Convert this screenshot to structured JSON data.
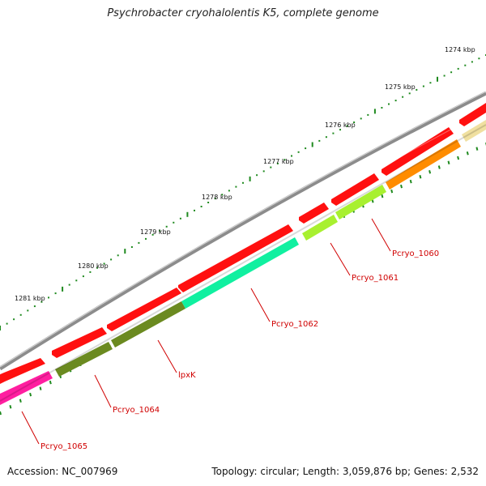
{
  "title": "Psychrobacter cryohalolentis K5, complete genome",
  "footer": {
    "accession": "Accession: NC_007969",
    "summary": "Topology: circular; Length: 3,059,876 bp; Genes: 2,532"
  },
  "colors": {
    "backbone": "#8c8c8c",
    "cds_strand": "#ff1010",
    "tick": "#1f8a1f",
    "label": "#d00000"
  },
  "kbp_ticks": [
    {
      "label": "1274 kbp"
    },
    {
      "label": "1275 kbp"
    },
    {
      "label": "1276 kbp"
    },
    {
      "label": "1277 kbp"
    },
    {
      "label": "1278 kbp"
    },
    {
      "label": "1279 kbp"
    },
    {
      "label": "1280 kbp"
    },
    {
      "label": "1281 kbp"
    }
  ],
  "genes": [
    {
      "label": "Pcryo_1060",
      "color": "#ff8c00"
    },
    {
      "label": "Pcryo_1061",
      "color": "#a8f030"
    },
    {
      "label": "Pcryo_1062",
      "color": "#10f0a0"
    },
    {
      "label": "lpxK",
      "color": "#6b8a20"
    },
    {
      "label": "Pcryo_1064",
      "color": "#6b8a20"
    },
    {
      "label": "Pcryo_1065",
      "color": "#ff1ea0"
    }
  ],
  "extra_gene_color": "#f0e0a0"
}
